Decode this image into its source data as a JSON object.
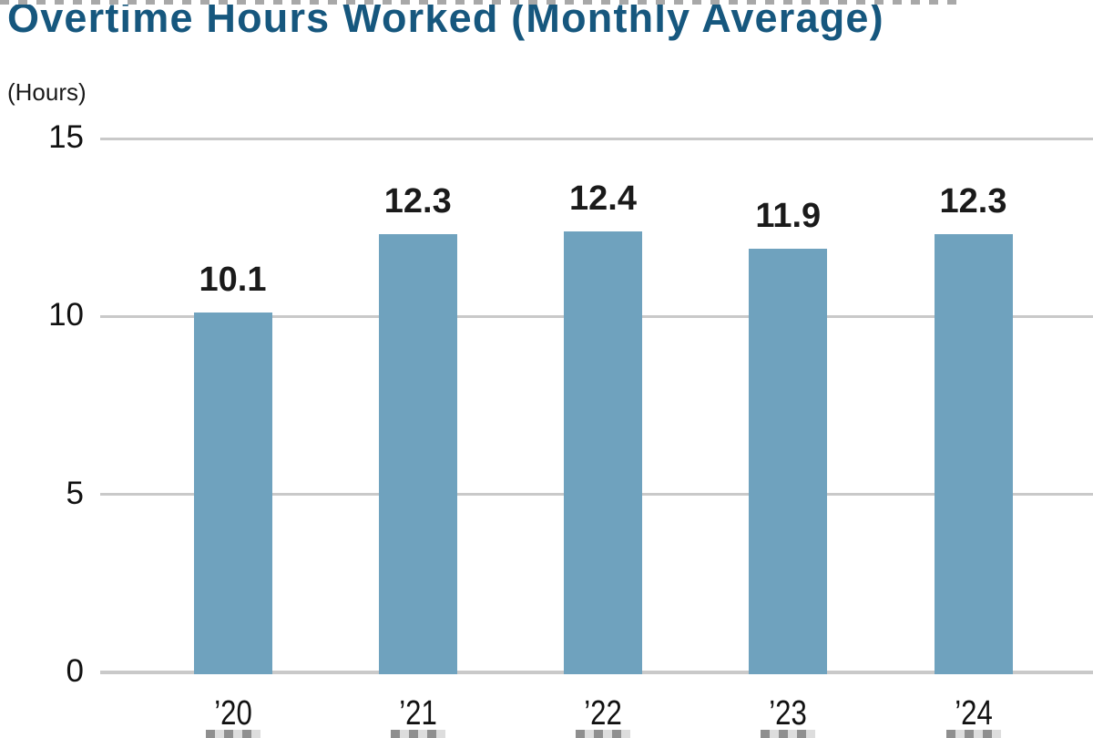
{
  "title": "Overtime Hours Worked (Monthly Average)",
  "axis_unit_label": "(Hours)",
  "chart_data": {
    "type": "bar",
    "title": "Overtime Hours Worked (Monthly Average)",
    "categories": [
      "’20",
      "’21",
      "’22",
      "’23",
      "’24"
    ],
    "values": [
      10.1,
      12.3,
      12.4,
      11.9,
      12.3
    ],
    "value_labels": [
      "10.1",
      "12.3",
      "12.4",
      "11.9",
      "12.3"
    ],
    "xlabel": "",
    "ylabel": "(Hours)",
    "ylim": [
      0,
      15
    ],
    "yticks": [
      0,
      5,
      10,
      15
    ],
    "grid": true,
    "legend": false,
    "colors": {
      "bar": "#6fa2be",
      "title": "#16577e",
      "gridline": "#c9c9c9",
      "text": "#1a1a1a"
    }
  }
}
